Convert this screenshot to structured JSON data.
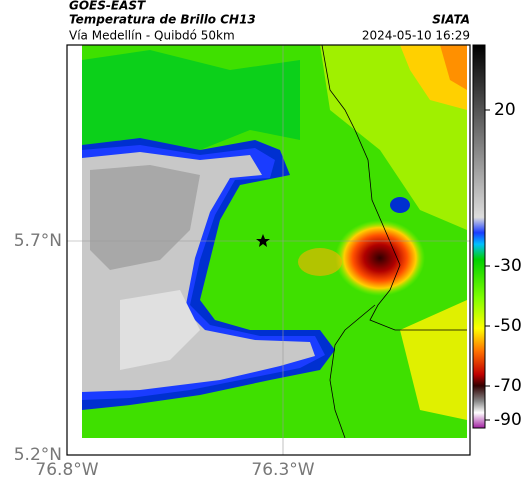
{
  "header": {
    "satellite": "GOES-EAST",
    "product": "Temperatura de Brillo CH13",
    "source": "SIATA",
    "route": "Vía Medellín - Quibdó 50km",
    "datetime": "2024-05-10 16:29"
  },
  "map": {
    "lat_ticks": [
      "5.7°N",
      "5.2°N"
    ],
    "lon_ticks": [
      "76.8°W",
      "76.3°W"
    ]
  },
  "colorbar": {
    "ticks": [
      20,
      -30,
      -50,
      -70,
      -90
    ]
  }
}
